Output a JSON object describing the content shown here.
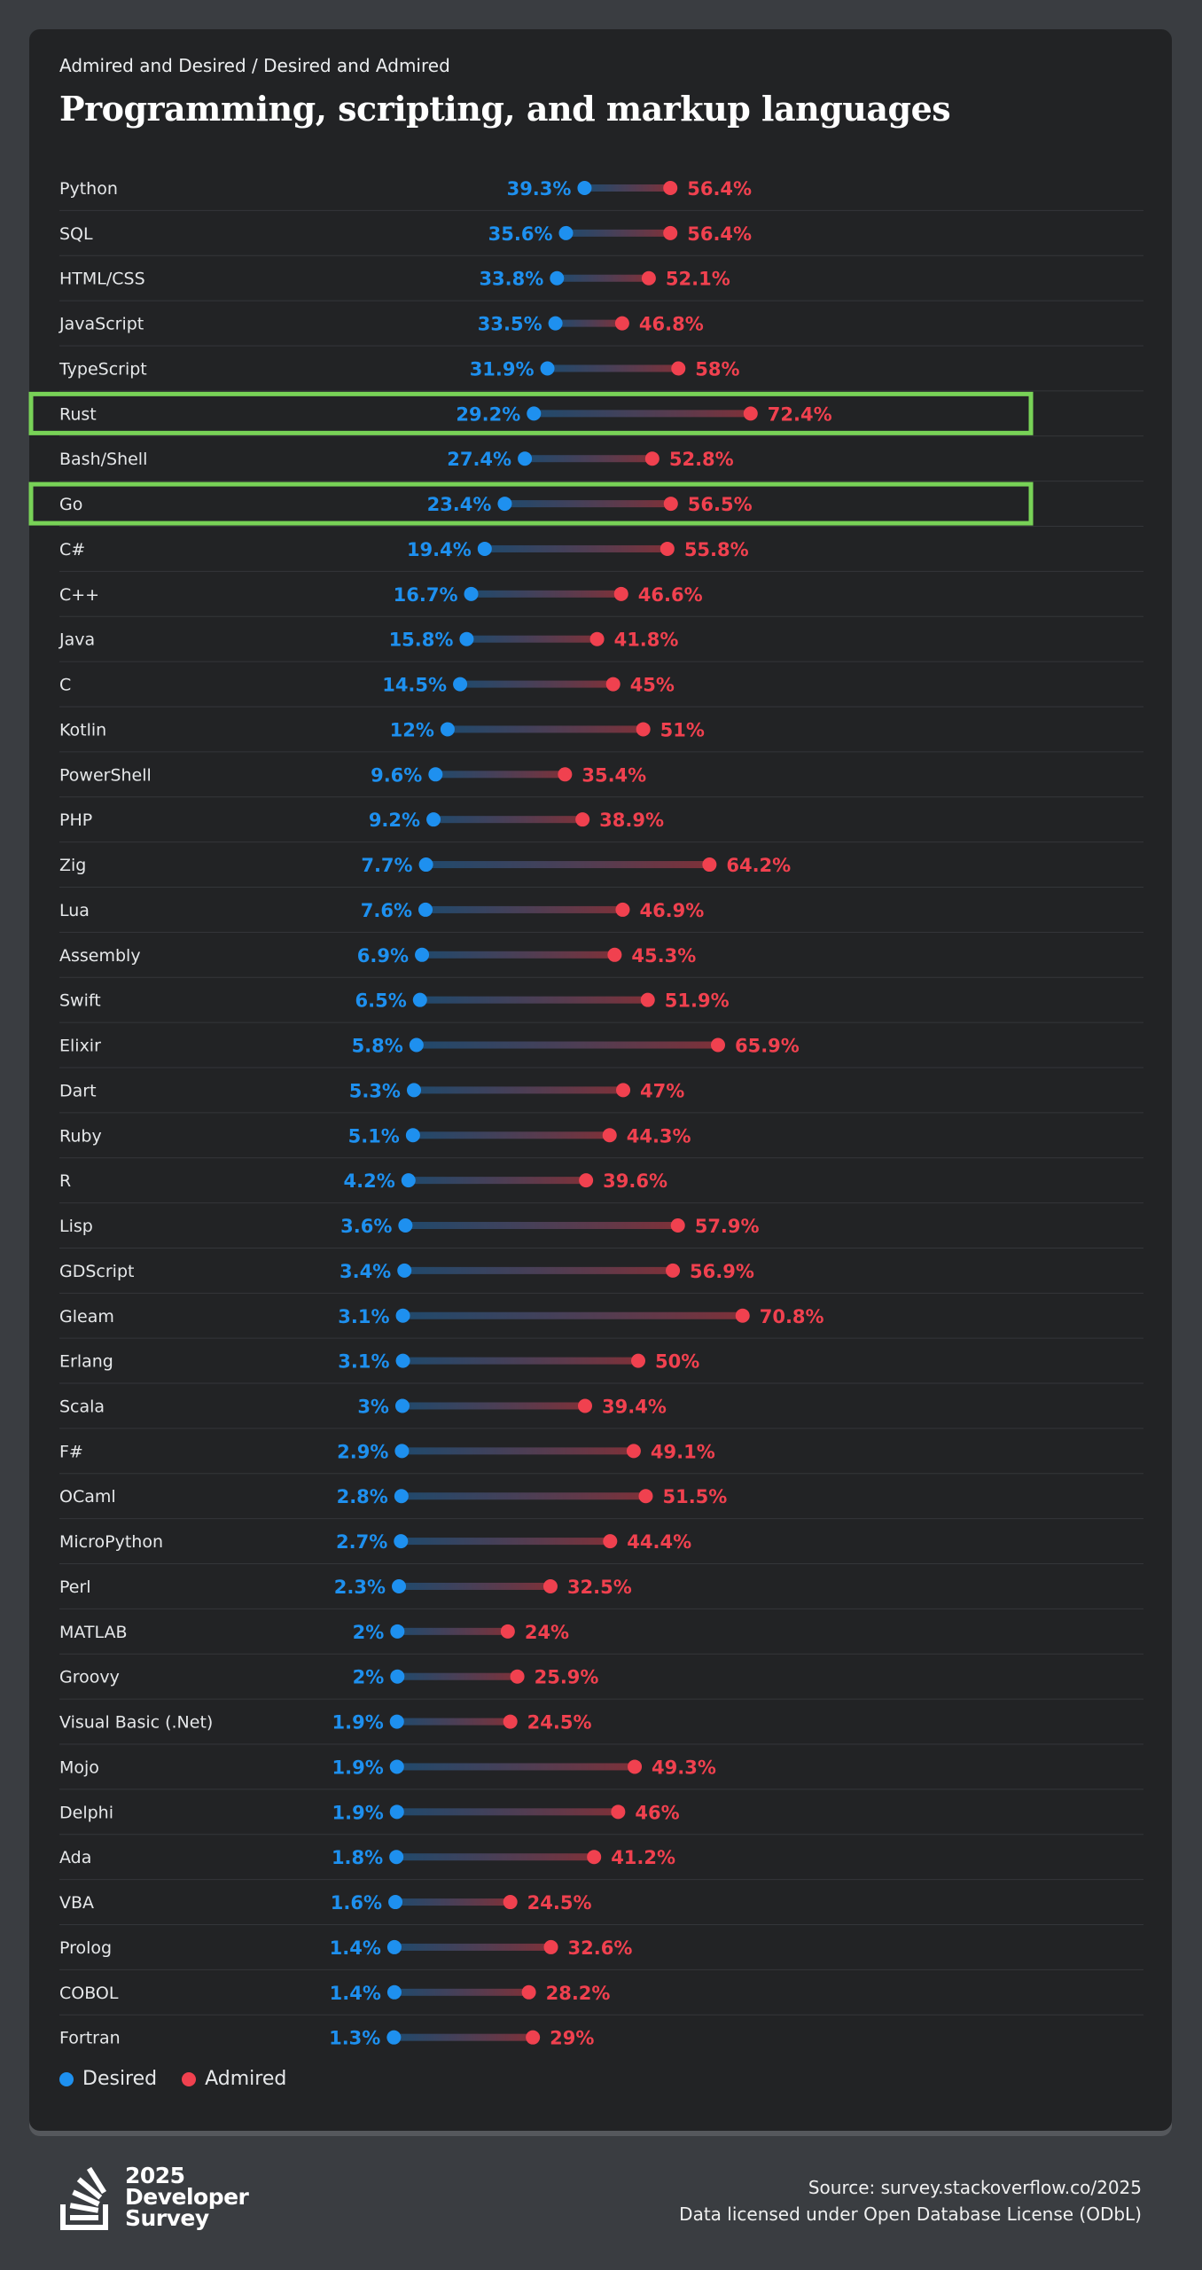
{
  "header": {
    "subtitle": "Admired and Desired / Desired and Admired",
    "title": "Programming, scripting, and markup languages"
  },
  "colors": {
    "desired": "#1e90ef",
    "admired": "#f0414f",
    "highlight": "#78d257"
  },
  "legend": {
    "desired": "Desired",
    "admired": "Admired"
  },
  "footer": {
    "logo_lines": [
      "2025",
      "Developer",
      "Survey"
    ],
    "source": "Source: survey.stackoverflow.co/2025",
    "license": "Data licensed under Open Database License (ODbL)"
  },
  "chart_data": {
    "type": "dumbbell",
    "title": "Programming, scripting, and markup languages",
    "series_names": [
      "Desired",
      "Admired"
    ],
    "unit": "%",
    "highlighted": [
      "Rust",
      "Go"
    ],
    "rows": [
      {
        "name": "Python",
        "desired": 39.3,
        "admired": 56.4
      },
      {
        "name": "SQL",
        "desired": 35.6,
        "admired": 56.4
      },
      {
        "name": "HTML/CSS",
        "desired": 33.8,
        "admired": 52.1
      },
      {
        "name": "JavaScript",
        "desired": 33.5,
        "admired": 46.8
      },
      {
        "name": "TypeScript",
        "desired": 31.9,
        "admired": 58
      },
      {
        "name": "Rust",
        "desired": 29.2,
        "admired": 72.4
      },
      {
        "name": "Bash/Shell",
        "desired": 27.4,
        "admired": 52.8
      },
      {
        "name": "Go",
        "desired": 23.4,
        "admired": 56.5
      },
      {
        "name": "C#",
        "desired": 19.4,
        "admired": 55.8
      },
      {
        "name": "C++",
        "desired": 16.7,
        "admired": 46.6
      },
      {
        "name": "Java",
        "desired": 15.8,
        "admired": 41.8
      },
      {
        "name": "C",
        "desired": 14.5,
        "admired": 45
      },
      {
        "name": "Kotlin",
        "desired": 12,
        "admired": 51
      },
      {
        "name": "PowerShell",
        "desired": 9.6,
        "admired": 35.4
      },
      {
        "name": "PHP",
        "desired": 9.2,
        "admired": 38.9
      },
      {
        "name": "Zig",
        "desired": 7.7,
        "admired": 64.2
      },
      {
        "name": "Lua",
        "desired": 7.6,
        "admired": 46.9
      },
      {
        "name": "Assembly",
        "desired": 6.9,
        "admired": 45.3
      },
      {
        "name": "Swift",
        "desired": 6.5,
        "admired": 51.9
      },
      {
        "name": "Elixir",
        "desired": 5.8,
        "admired": 65.9
      },
      {
        "name": "Dart",
        "desired": 5.3,
        "admired": 47
      },
      {
        "name": "Ruby",
        "desired": 5.1,
        "admired": 44.3
      },
      {
        "name": "R",
        "desired": 4.2,
        "admired": 39.6
      },
      {
        "name": "Lisp",
        "desired": 3.6,
        "admired": 57.9
      },
      {
        "name": "GDScript",
        "desired": 3.4,
        "admired": 56.9
      },
      {
        "name": "Gleam",
        "desired": 3.1,
        "admired": 70.8
      },
      {
        "name": "Erlang",
        "desired": 3.1,
        "admired": 50
      },
      {
        "name": "Scala",
        "desired": 3,
        "admired": 39.4
      },
      {
        "name": "F#",
        "desired": 2.9,
        "admired": 49.1
      },
      {
        "name": "OCaml",
        "desired": 2.8,
        "admired": 51.5
      },
      {
        "name": "MicroPython",
        "desired": 2.7,
        "admired": 44.4
      },
      {
        "name": "Perl",
        "desired": 2.3,
        "admired": 32.5
      },
      {
        "name": "MATLAB",
        "desired": 2,
        "admired": 24
      },
      {
        "name": "Groovy",
        "desired": 2,
        "admired": 25.9
      },
      {
        "name": "Visual Basic (.Net)",
        "desired": 1.9,
        "admired": 24.5
      },
      {
        "name": "Mojo",
        "desired": 1.9,
        "admired": 49.3
      },
      {
        "name": "Delphi",
        "desired": 1.9,
        "admired": 46
      },
      {
        "name": "Ada",
        "desired": 1.8,
        "admired": 41.2
      },
      {
        "name": "VBA",
        "desired": 1.6,
        "admired": 24.5
      },
      {
        "name": "Prolog",
        "desired": 1.4,
        "admired": 32.6
      },
      {
        "name": "COBOL",
        "desired": 1.4,
        "admired": 28.2
      },
      {
        "name": "Fortran",
        "desired": 1.3,
        "admired": 29
      }
    ]
  }
}
